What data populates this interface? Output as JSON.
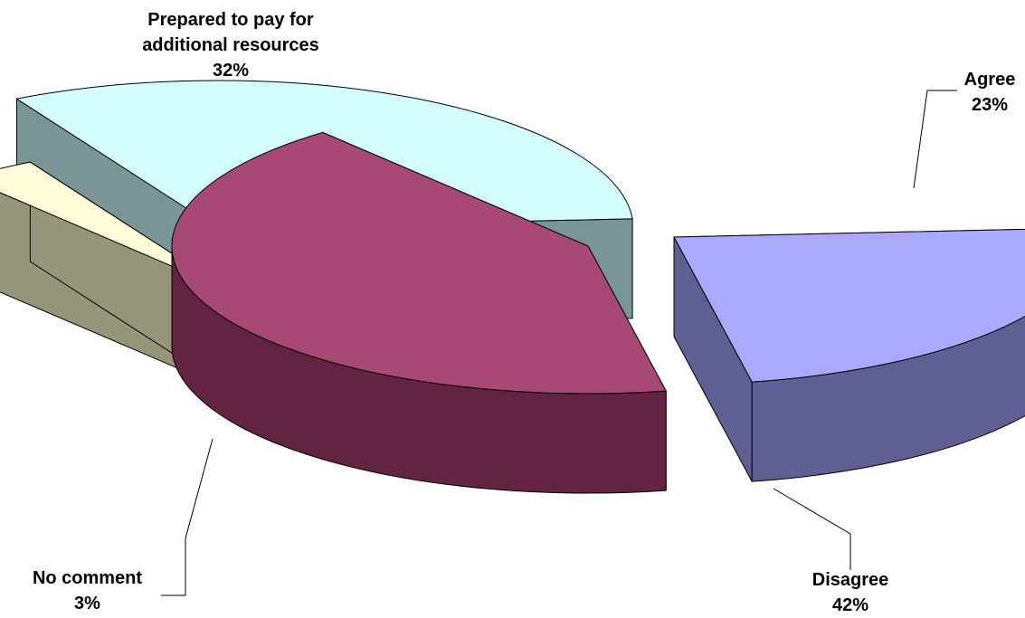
{
  "chart_data": {
    "type": "pie",
    "variant": "3d-exploded",
    "slices": [
      {
        "label": "Agree",
        "value": 23,
        "value_label": "23%",
        "color": "#A9A9FF",
        "side_color": "#5F5F94"
      },
      {
        "label": "Disagree",
        "value": 42,
        "value_label": "42%",
        "color": "#A84874",
        "side_color": "#632441"
      },
      {
        "label": "No comment",
        "value": 3,
        "value_label": "3%",
        "color": "#FFFCDA",
        "side_color": "#96957A"
      },
      {
        "label": "Prepared to pay for additional resources",
        "label_lines": [
          "Prepared to pay for",
          "additional resources"
        ],
        "value": 32,
        "value_label": "32%",
        "color": "#D2FCFF",
        "side_color": "#7A9596"
      }
    ]
  }
}
